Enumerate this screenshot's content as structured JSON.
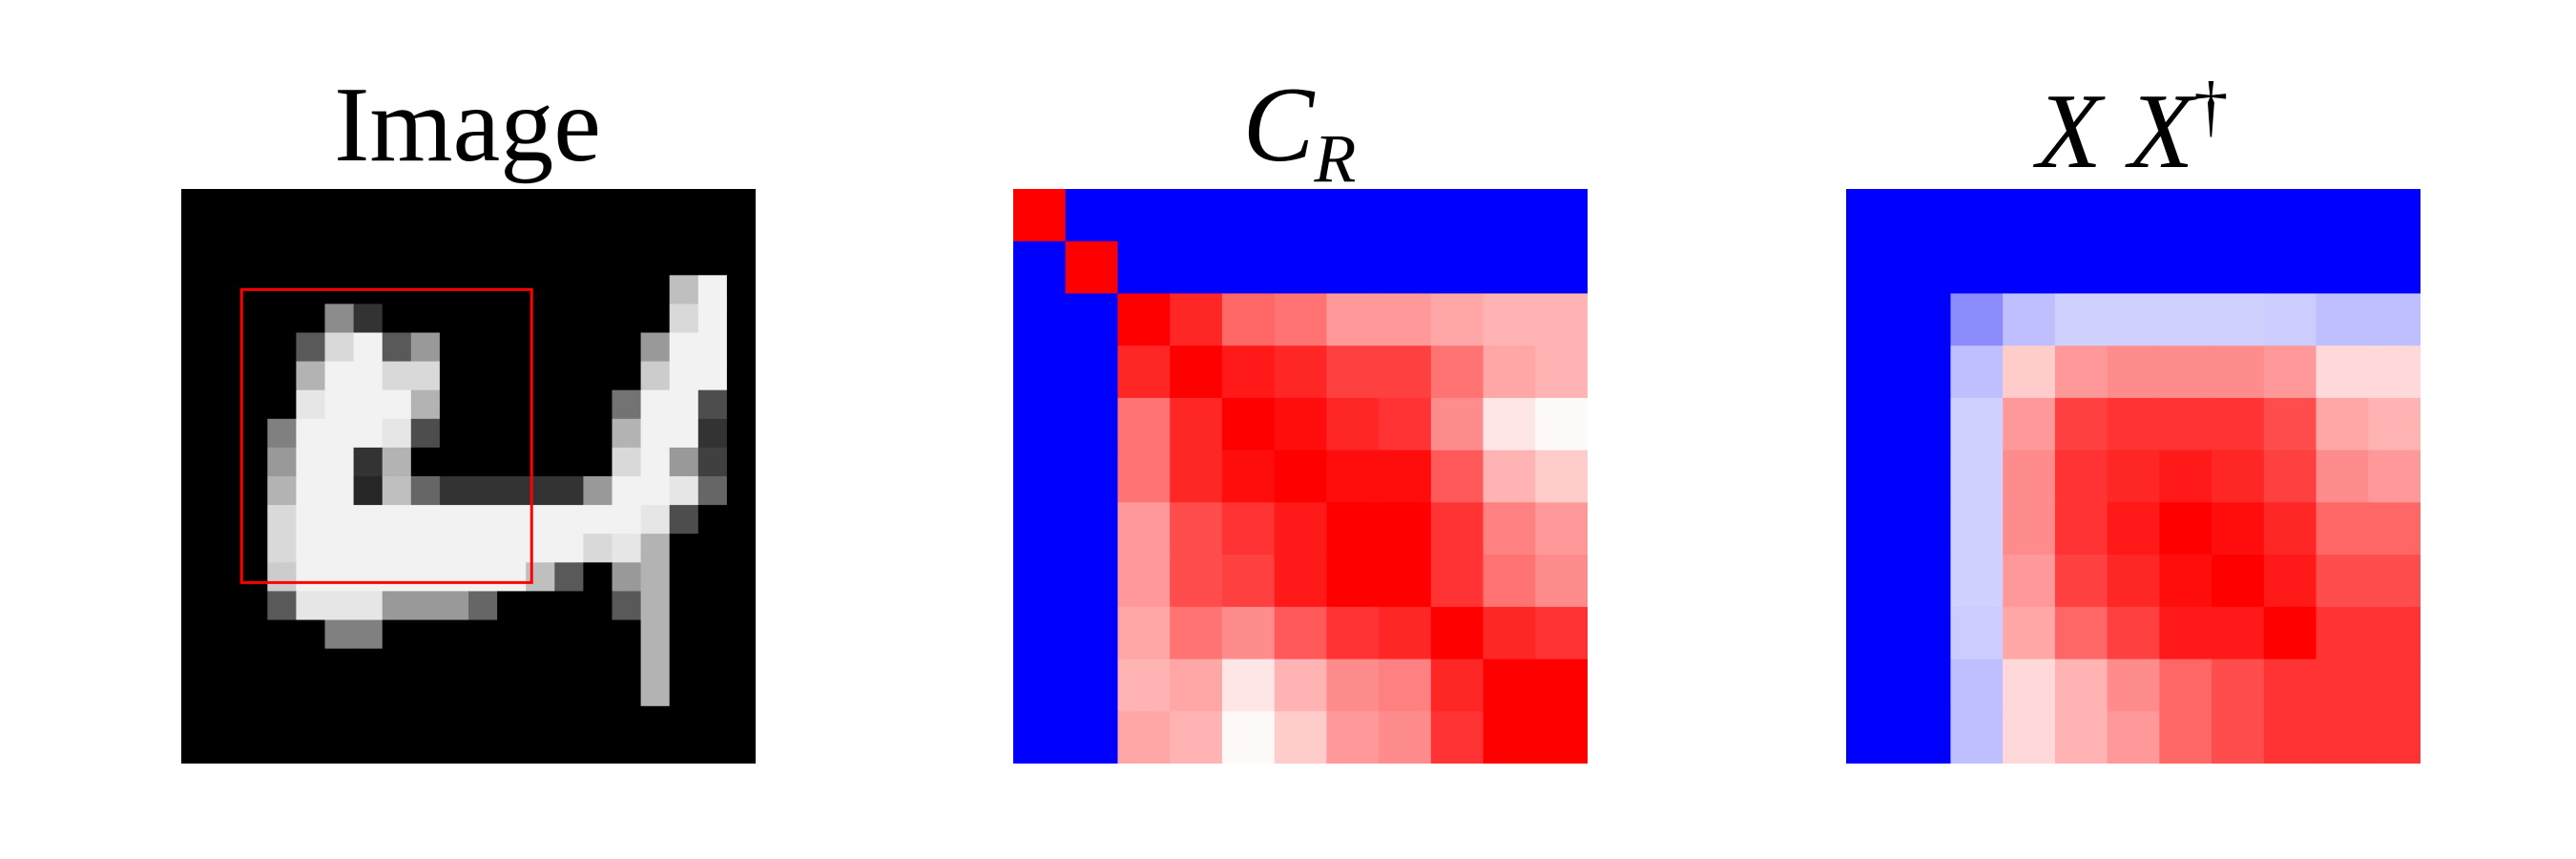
{
  "panels": [
    {
      "id": "image",
      "title": "Image",
      "kind": "grayscale",
      "grid_size": 20,
      "values": [
        [
          0,
          0,
          0,
          0,
          0,
          0,
          0,
          0,
          0,
          0,
          0,
          0,
          0,
          0,
          0,
          0,
          0,
          0,
          0,
          0
        ],
        [
          0,
          0,
          0,
          0,
          0,
          0,
          0,
          0,
          0,
          0,
          0,
          0,
          0,
          0,
          0,
          0,
          0,
          0,
          0,
          0
        ],
        [
          0,
          0,
          0,
          0,
          0,
          0,
          0,
          0,
          0,
          0,
          0,
          0,
          0,
          0,
          0,
          0,
          0,
          0,
          0,
          0
        ],
        [
          0,
          0,
          0,
          0,
          0,
          0,
          0,
          0,
          0,
          0,
          0,
          0,
          0,
          0,
          0,
          0,
          0,
          0.75,
          0.95,
          0
        ],
        [
          0,
          0,
          0,
          0,
          0,
          0.55,
          0.2,
          0,
          0,
          0,
          0,
          0,
          0,
          0,
          0,
          0,
          0,
          0.85,
          0.95,
          0
        ],
        [
          0,
          0,
          0,
          0,
          0.35,
          0.85,
          0.95,
          0.35,
          0.6,
          0,
          0,
          0,
          0,
          0,
          0,
          0,
          0.6,
          0.95,
          0.95,
          0
        ],
        [
          0,
          0,
          0,
          0,
          0.7,
          0.95,
          0.95,
          0.85,
          0.85,
          0,
          0,
          0,
          0,
          0,
          0,
          0,
          0.8,
          0.95,
          0.95,
          0
        ],
        [
          0,
          0,
          0,
          0,
          0.9,
          0.95,
          0.95,
          0.95,
          0.7,
          0,
          0,
          0,
          0,
          0,
          0,
          0.45,
          0.95,
          0.95,
          0.3,
          0
        ],
        [
          0,
          0,
          0,
          0.5,
          0.95,
          0.95,
          0.95,
          0.9,
          0.3,
          0,
          0,
          0,
          0,
          0,
          0,
          0.7,
          0.95,
          0.95,
          0.2,
          0
        ],
        [
          0,
          0,
          0,
          0.6,
          0.95,
          0.95,
          0.2,
          0.7,
          0,
          0,
          0,
          0,
          0,
          0,
          0,
          0.85,
          0.95,
          0.6,
          0.25,
          0
        ],
        [
          0,
          0,
          0,
          0.7,
          0.95,
          0.95,
          0.15,
          0.75,
          0.4,
          0.2,
          0.2,
          0.2,
          0.2,
          0.2,
          0.6,
          0.95,
          0.95,
          0.9,
          0.4,
          0
        ],
        [
          0,
          0,
          0,
          0.85,
          0.95,
          0.95,
          0.95,
          0.95,
          0.95,
          0.95,
          0.95,
          0.95,
          0.95,
          0.95,
          0.95,
          0.95,
          0.9,
          0.3,
          0,
          0
        ],
        [
          0,
          0,
          0,
          0.85,
          0.95,
          0.95,
          0.95,
          0.95,
          0.95,
          0.95,
          0.95,
          0.95,
          0.95,
          0.95,
          0.85,
          0.9,
          0.7,
          0,
          0,
          0
        ],
        [
          0,
          0,
          0,
          0.8,
          0.95,
          0.95,
          0.95,
          0.95,
          0.95,
          0.95,
          0.95,
          0.95,
          0.75,
          0.35,
          0,
          0.6,
          0.7,
          0,
          0,
          0
        ],
        [
          0,
          0,
          0,
          0.35,
          0.9,
          0.9,
          0.9,
          0.6,
          0.6,
          0.6,
          0.4,
          0,
          0,
          0,
          0,
          0.35,
          0.7,
          0,
          0,
          0
        ],
        [
          0,
          0,
          0,
          0,
          0,
          0.5,
          0.5,
          0,
          0,
          0,
          0,
          0,
          0,
          0,
          0,
          0,
          0.7,
          0,
          0,
          0
        ],
        [
          0,
          0,
          0,
          0,
          0,
          0,
          0,
          0,
          0,
          0,
          0,
          0,
          0,
          0,
          0,
          0,
          0.7,
          0,
          0,
          0
        ],
        [
          0,
          0,
          0,
          0,
          0,
          0,
          0,
          0,
          0,
          0,
          0,
          0,
          0,
          0,
          0,
          0,
          0.7,
          0,
          0,
          0
        ],
        [
          0,
          0,
          0,
          0,
          0,
          0,
          0,
          0,
          0,
          0,
          0,
          0,
          0,
          0,
          0,
          0,
          0,
          0,
          0,
          0
        ],
        [
          0,
          0,
          0,
          0,
          0,
          0,
          0,
          0,
          0,
          0,
          0,
          0,
          0,
          0,
          0,
          0,
          0,
          0,
          0,
          0
        ]
      ],
      "highlight_box": {
        "row_start": 3.5,
        "col_start": 2.1,
        "rows": 10.2,
        "cols": 10.1,
        "color": "#ff0000"
      }
    },
    {
      "id": "c_r",
      "title_main": "C",
      "title_sub": "R",
      "kind": "diverging",
      "grid_size": 11,
      "values": [
        [
          1,
          -1,
          -1,
          -1,
          -1,
          -1,
          -1,
          -1,
          -1,
          -1,
          -1
        ],
        [
          -1,
          1,
          -1,
          -1,
          -1,
          -1,
          -1,
          -1,
          -1,
          -1,
          -1
        ],
        [
          -1,
          -1,
          1,
          0.85,
          0.6,
          0.55,
          0.4,
          0.4,
          0.35,
          0.3,
          0.3
        ],
        [
          -1,
          -1,
          0.85,
          1,
          0.9,
          0.85,
          0.75,
          0.75,
          0.55,
          0.35,
          0.3
        ],
        [
          -1,
          -1,
          0.55,
          0.85,
          1,
          0.95,
          0.85,
          0.8,
          0.45,
          0.1,
          0.02
        ],
        [
          -1,
          -1,
          0.55,
          0.85,
          0.95,
          1,
          0.95,
          0.95,
          0.65,
          0.3,
          0.2
        ],
        [
          -1,
          -1,
          0.4,
          0.7,
          0.8,
          0.9,
          1,
          1,
          0.8,
          0.5,
          0.4
        ],
        [
          -1,
          -1,
          0.4,
          0.7,
          0.75,
          0.9,
          1,
          1,
          0.8,
          0.55,
          0.45
        ],
        [
          -1,
          -1,
          0.35,
          0.55,
          0.45,
          0.65,
          0.8,
          0.85,
          1,
          0.85,
          0.8
        ],
        [
          -1,
          -1,
          0.3,
          0.35,
          0.1,
          0.3,
          0.45,
          0.5,
          0.85,
          1,
          1
        ],
        [
          -1,
          -1,
          0.35,
          0.3,
          0.02,
          0.2,
          0.4,
          0.45,
          0.8,
          1,
          1
        ]
      ]
    },
    {
      "id": "xxdag",
      "title_main": "X X",
      "title_sup": "†",
      "kind": "diverging",
      "grid_size": 11,
      "values": [
        [
          -1,
          -1,
          -1,
          -1,
          -1,
          -1,
          -1,
          -1,
          -1,
          -1,
          -1
        ],
        [
          -1,
          -1,
          -1,
          -1,
          -1,
          -1,
          -1,
          -1,
          -1,
          -1,
          -1
        ],
        [
          -1,
          -1,
          -0.45,
          -0.25,
          -0.18,
          -0.18,
          -0.18,
          -0.18,
          -0.2,
          -0.25,
          -0.25
        ],
        [
          -1,
          -1,
          -0.25,
          0.2,
          0.4,
          0.45,
          0.45,
          0.45,
          0.4,
          0.15,
          0.15
        ],
        [
          -1,
          -1,
          -0.18,
          0.4,
          0.75,
          0.8,
          0.8,
          0.8,
          0.7,
          0.35,
          0.3
        ],
        [
          -1,
          -1,
          -0.18,
          0.45,
          0.8,
          0.85,
          0.9,
          0.85,
          0.75,
          0.45,
          0.4
        ],
        [
          -1,
          -1,
          -0.18,
          0.45,
          0.8,
          0.9,
          1,
          0.95,
          0.85,
          0.6,
          0.6
        ],
        [
          -1,
          -1,
          -0.18,
          0.4,
          0.75,
          0.85,
          0.95,
          1,
          0.9,
          0.7,
          0.7
        ],
        [
          -1,
          -1,
          -0.2,
          0.35,
          0.6,
          0.75,
          0.9,
          0.9,
          1,
          0.8,
          0.8
        ],
        [
          -1,
          -1,
          -0.25,
          0.15,
          0.3,
          0.45,
          0.6,
          0.7,
          0.8,
          0.8,
          0.8
        ],
        [
          -1,
          -1,
          -0.25,
          0.15,
          0.3,
          0.4,
          0.6,
          0.7,
          0.8,
          0.8,
          0.8
        ]
      ]
    }
  ],
  "colors": {
    "positive": "#ff0000",
    "negative": "#0000ff",
    "neutral": "#ffffff"
  }
}
